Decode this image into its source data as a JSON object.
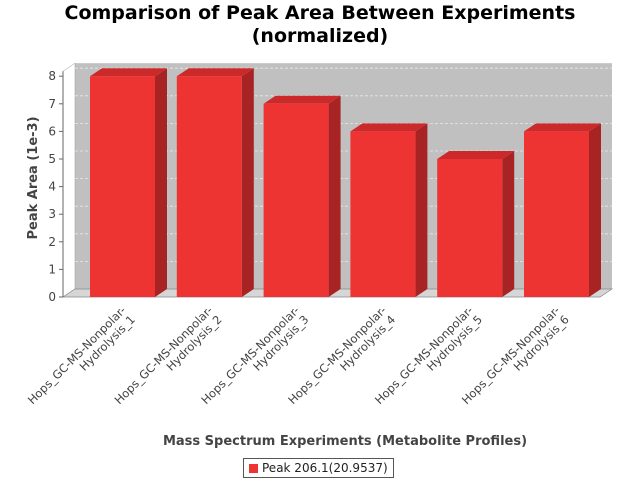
{
  "chart_data": {
    "type": "bar",
    "title_line1": "Comparison of Peak Area Between Experiments",
    "title_line2": "(normalized)",
    "xlabel": "Mass Spectrum Experiments (Metabolite Profiles)",
    "ylabel": "Peak Area (1e-3)",
    "categories": [
      "Hops_GC-MS-Nonpolar-Hydrolysis_1",
      "Hops_GC-MS-Nonpolar-Hydrolysis_2",
      "Hops_GC-MS-Nonpolar-Hydrolysis_3",
      "Hops_GC-MS-Nonpolar-Hydrolysis_4",
      "Hops_GC-MS-Nonpolar-Hydrolysis_5",
      "Hops_GC-MS-Nonpolar-Hydrolysis_6"
    ],
    "category_lines": [
      [
        "Hops_GC-MS-Nonpolar-",
        "Hydrolysis_1"
      ],
      [
        "Hops_GC-MS-Nonpolar-",
        "Hydrolysis_2"
      ],
      [
        "Hops_GC-MS-Nonpolar-",
        "Hydrolysis_3"
      ],
      [
        "Hops_GC-MS-Nonpolar-",
        "Hydrolysis_4"
      ],
      [
        "Hops_GC-MS-Nonpolar-",
        "Hydrolysis_5"
      ],
      [
        "Hops_GC-MS-Nonpolar-",
        "Hydrolysis_6"
      ]
    ],
    "series": [
      {
        "name": "Peak 206.1(20.9537)",
        "values": [
          8,
          8,
          7,
          6,
          5,
          6
        ]
      }
    ],
    "ylim": [
      0,
      8
    ],
    "yticks": [
      "0",
      "1",
      "2",
      "3",
      "4",
      "5",
      "6",
      "7",
      "8"
    ],
    "grid": true,
    "legend_position": "bottom",
    "colors": {
      "bar_front": "#ee3333",
      "bar_top": "#cc2a2a",
      "bar_side": "#a82424",
      "plot_back": "#c0c0c0",
      "plot_floor": "#d6d6d6",
      "plot_wall": "#ffffff",
      "grid": "#e8e8e8",
      "axis_text": "#444444",
      "label_text": "#222222"
    }
  }
}
